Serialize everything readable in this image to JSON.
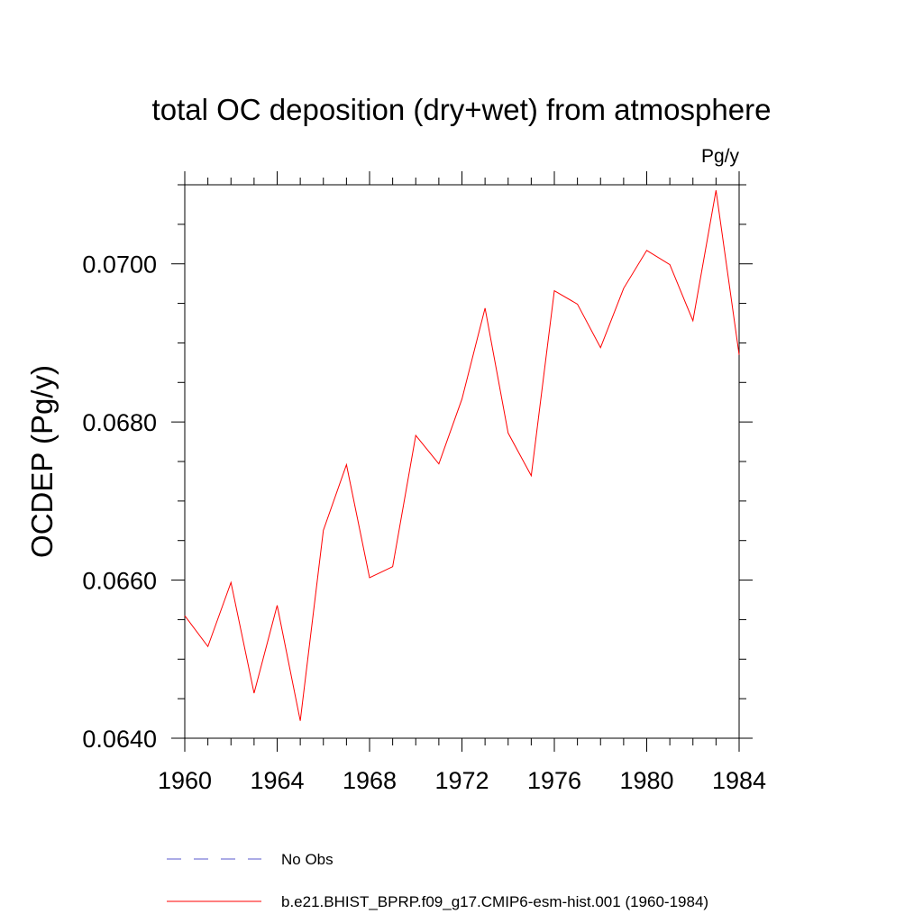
{
  "chart_data": {
    "type": "line",
    "title": "total OC deposition (dry+wet) from atmosphere",
    "units_label": "Pg/y",
    "ylabel": "OCDEP  (Pg/y)",
    "xlabel": "",
    "xlim": [
      1960,
      1984
    ],
    "ylim": [
      0.064,
      0.071
    ],
    "x_ticks": [
      1960,
      1964,
      1968,
      1972,
      1976,
      1980,
      1984
    ],
    "x_tick_labels": [
      "1960",
      "1964",
      "1968",
      "1972",
      "1976",
      "1980",
      "1984"
    ],
    "y_ticks": [
      0.064,
      0.066,
      0.068,
      0.07
    ],
    "y_tick_labels": [
      "0.0640",
      "0.0660",
      "0.0680",
      "0.0700"
    ],
    "y_minor_step": 0.0005,
    "x_minor_step": 1,
    "grid": false,
    "legend_position": "bottom",
    "series": [
      {
        "name": "No Obs",
        "color": "#5a5acd",
        "dash": true,
        "values": []
      },
      {
        "name": "b.e21.BHIST_BPRP.f09_g17.CMIP6-esm-hist.001 (1960-1984)",
        "color": "#ff0000",
        "dash": false,
        "x": [
          1960,
          1961,
          1962,
          1963,
          1964,
          1965,
          1966,
          1967,
          1968,
          1969,
          1970,
          1971,
          1972,
          1973,
          1974,
          1975,
          1976,
          1977,
          1978,
          1979,
          1980,
          1981,
          1982,
          1983,
          1984
        ],
        "values": [
          0.06555,
          0.06516,
          0.06597,
          0.06457,
          0.06568,
          0.06422,
          0.06663,
          0.06746,
          0.06603,
          0.06617,
          0.06783,
          0.06747,
          0.06829,
          0.06944,
          0.06786,
          0.06732,
          0.06966,
          0.06949,
          0.06894,
          0.06969,
          0.07017,
          0.06999,
          0.06928,
          0.07093,
          0.06885
        ]
      }
    ]
  }
}
